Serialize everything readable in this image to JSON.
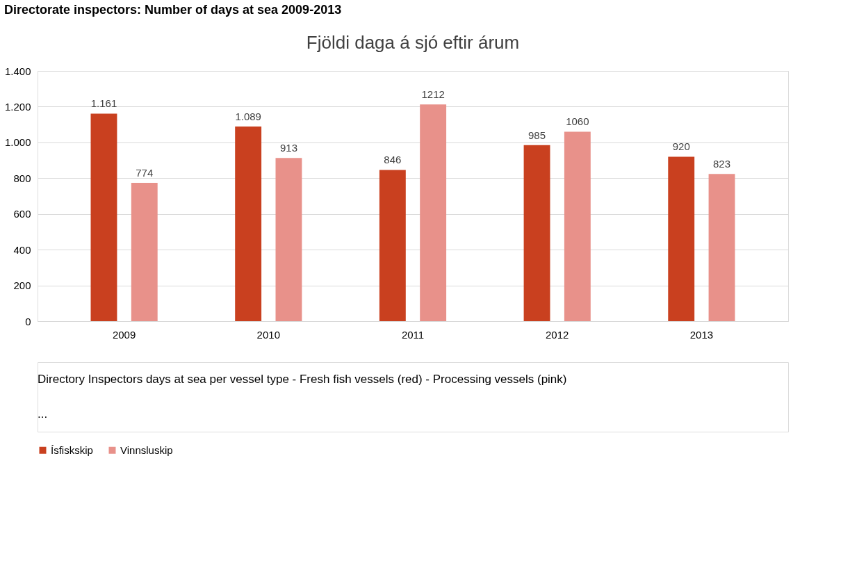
{
  "chart_data": {
    "type": "bar",
    "title": "Directorate inspectors: Number of days at sea 2009-2013",
    "subtitle": "Fjöldi daga á sjó eftir árum",
    "categories": [
      "2009",
      "2010",
      "2011",
      "2012",
      "2013"
    ],
    "series": [
      {
        "name": "Ísfiskskip",
        "color": "#c9401f",
        "values": [
          1161,
          1089,
          846,
          985,
          920
        ],
        "value_labels": [
          "1.161",
          "1.089",
          "846",
          "985",
          "920"
        ]
      },
      {
        "name": "Vinnsluskip",
        "color": "#e8918a",
        "values": [
          774,
          913,
          1212,
          1060,
          823
        ],
        "value_labels": [
          "774",
          "913",
          "1212",
          "1060",
          "823"
        ]
      }
    ],
    "ylim": [
      0,
      1400
    ],
    "yticks": [
      {
        "value": 0,
        "label": "0"
      },
      {
        "value": 200,
        "label": "200"
      },
      {
        "value": 400,
        "label": "400"
      },
      {
        "value": 600,
        "label": "600"
      },
      {
        "value": 800,
        "label": "800"
      },
      {
        "value": 1000,
        "label": "1.000"
      },
      {
        "value": 1200,
        "label": "1.200"
      },
      {
        "value": 1400,
        "label": "1.400"
      }
    ],
    "grid": "y",
    "legend": "bottom",
    "annotations": [
      "Directory Inspectors days at sea per vessel type -   Fresh fish vessels (red)    - Processing vessels (pink)",
      "..."
    ]
  }
}
